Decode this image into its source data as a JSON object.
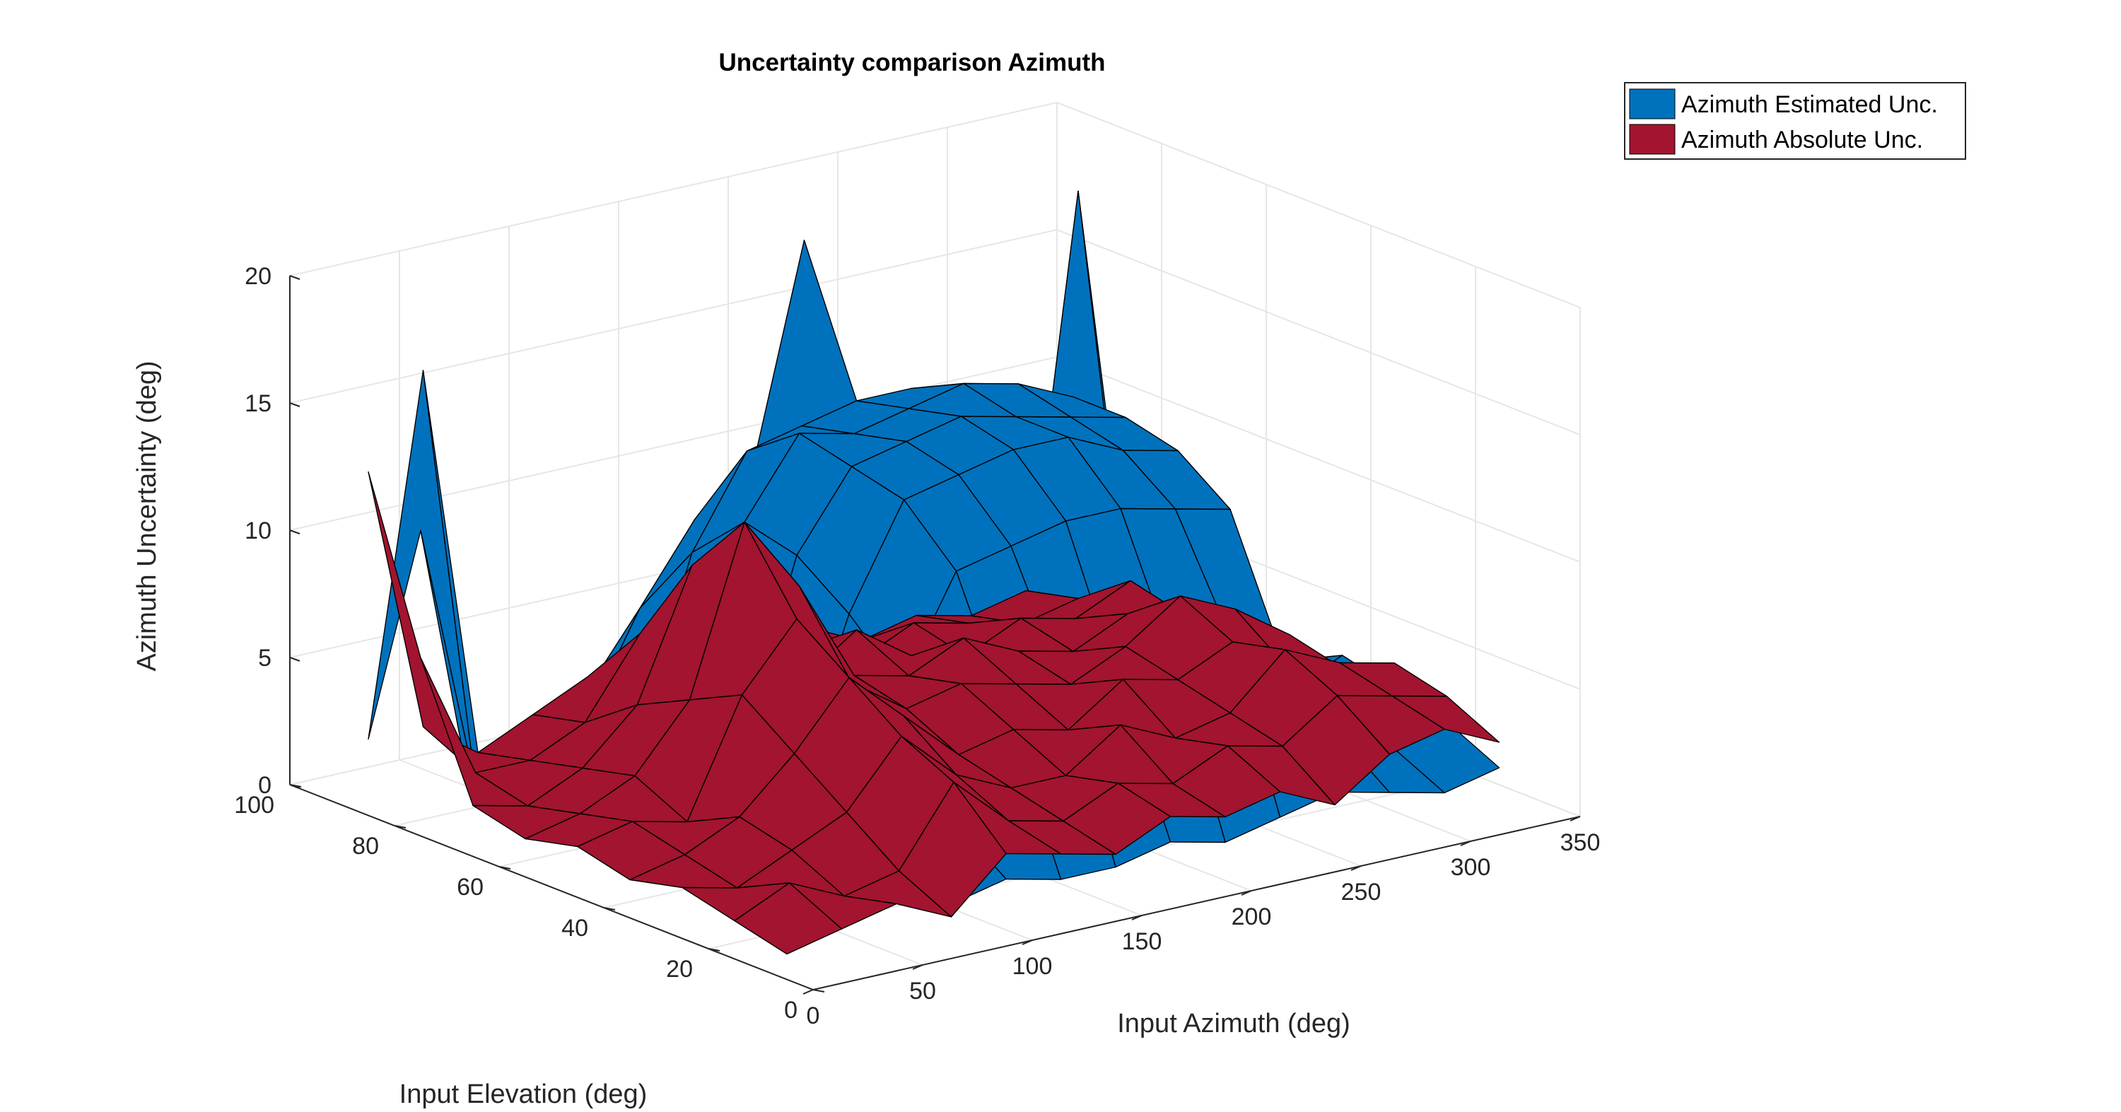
{
  "chart_data": {
    "type": "surface3d",
    "title": "Uncertainty comparison Azimuth",
    "xlabel": "Input Azimuth (deg)",
    "ylabel": "Input Elevation (deg)",
    "zlabel": "Azimuth  Uncertainty (deg)",
    "xlim": [
      0,
      350
    ],
    "ylim": [
      0,
      100
    ],
    "zlim": [
      0,
      20
    ],
    "xticks": [
      "0",
      "50",
      "100",
      "150",
      "200",
      "250",
      "300",
      "350"
    ],
    "yticks": [
      "0",
      "20",
      "40",
      "60",
      "80",
      "100"
    ],
    "zticks": [
      "0",
      "5",
      "10",
      "15",
      "20"
    ],
    "grid": true,
    "legend_position": "top-right",
    "series": [
      {
        "name": "Azimuth Estimated Unc.",
        "color": "#0072BD",
        "x_grid": [
          0,
          25,
          50,
          75,
          100,
          125,
          150,
          175,
          200,
          225,
          250,
          275,
          300,
          325
        ],
        "y_grid": [
          5,
          15,
          25,
          35,
          45,
          55,
          65,
          75,
          85
        ],
        "z": [
          [
            2.0,
            1.5,
            2.5,
            1.5,
            2.0,
            1.5,
            1.5,
            2.0,
            1.5,
            2.0,
            2.5,
            2.0,
            1.5,
            2.0
          ],
          [
            2.5,
            2.0,
            3.0,
            2.0,
            3.5,
            7.0,
            8.0,
            7.5,
            8.0,
            8.5,
            7.0,
            3.5,
            2.5,
            3.0
          ],
          [
            2.5,
            2.5,
            2.0,
            3.0,
            8.0,
            12.0,
            12.5,
            13.0,
            13.0,
            12.5,
            12.0,
            4.0,
            3.0,
            3.5
          ],
          [
            3.0,
            2.5,
            3.0,
            4.0,
            10.0,
            14.0,
            14.5,
            15.0,
            15.0,
            14.0,
            13.5,
            4.5,
            3.0,
            4.0
          ],
          [
            2.5,
            3.0,
            3.5,
            4.5,
            11.5,
            14.5,
            15.0,
            15.5,
            15.0,
            14.5,
            14.0,
            4.0,
            3.5,
            3.0
          ],
          [
            2.0,
            2.5,
            3.0,
            4.0,
            12.0,
            15.0,
            14.5,
            15.0,
            15.5,
            15.0,
            14.0,
            4.5,
            3.5,
            3.0
          ],
          [
            2.0,
            2.0,
            2.5,
            3.5,
            10.0,
            13.5,
            14.0,
            14.5,
            14.5,
            13.5,
            12.5,
            4.0,
            3.0,
            2.5
          ],
          [
            12.0,
            1.5,
            2.0,
            3.0,
            7.0,
            10.0,
            11.0,
            20.0,
            12.0,
            11.0,
            9.0,
            3.0,
            19.5,
            2.0
          ],
          [
            3.0,
            17.0,
            1.5,
            2.0,
            3.0,
            4.0,
            4.5,
            4.0,
            4.5,
            4.0,
            3.5,
            2.5,
            2.0,
            1.5
          ]
        ]
      },
      {
        "name": "Azimuth Absolute Unc.",
        "color": "#A2142F",
        "x_grid": [
          0,
          25,
          50,
          75,
          100,
          125,
          150,
          175,
          200,
          225,
          250,
          275,
          300,
          325
        ],
        "y_grid": [
          5,
          15,
          25,
          35,
          45,
          55,
          65,
          75,
          85
        ],
        "z": [
          [
            1.0,
            1.5,
            2.0,
            1.0,
            3.0,
            2.5,
            2.0,
            3.0,
            2.5,
            3.0,
            2.0,
            3.5,
            4.0,
            3.0
          ],
          [
            1.5,
            2.5,
            1.5,
            2.0,
            5.0,
            3.0,
            2.5,
            3.5,
            3.0,
            4.0,
            3.5,
            5.0,
            4.5,
            4.0
          ],
          [
            2.0,
            1.5,
            2.5,
            3.5,
            6.0,
            4.0,
            3.0,
            3.0,
            4.5,
            3.5,
            4.0,
            6.0,
            5.0,
            4.5
          ],
          [
            1.5,
            2.0,
            3.0,
            5.0,
            7.5,
            5.5,
            3.5,
            4.0,
            3.5,
            5.0,
            4.5,
            5.5,
            4.0,
            3.5
          ],
          [
            2.0,
            2.5,
            2.0,
            6.5,
            9.0,
            6.0,
            4.5,
            5.0,
            4.5,
            4.0,
            5.0,
            6.5,
            5.5,
            4.0
          ],
          [
            1.5,
            2.0,
            3.0,
            5.5,
            12.0,
            9.0,
            5.0,
            4.5,
            5.5,
            4.5,
            4.0,
            5.0,
            4.5,
            3.5
          ],
          [
            2.0,
            1.5,
            2.5,
            4.5,
            9.5,
            7.0,
            4.0,
            5.5,
            4.0,
            3.5,
            4.5,
            4.0,
            5.0,
            3.0
          ],
          [
            7.0,
            2.0,
            2.0,
            3.0,
            6.0,
            5.0,
            3.5,
            4.0,
            3.0,
            4.0,
            3.5,
            3.0,
            3.5,
            2.5
          ],
          [
            13.5,
            3.0,
            1.5,
            2.5,
            3.5,
            3.0,
            2.5,
            3.0,
            3.5,
            2.5,
            3.0,
            2.5,
            3.0,
            2.0
          ]
        ]
      }
    ]
  }
}
